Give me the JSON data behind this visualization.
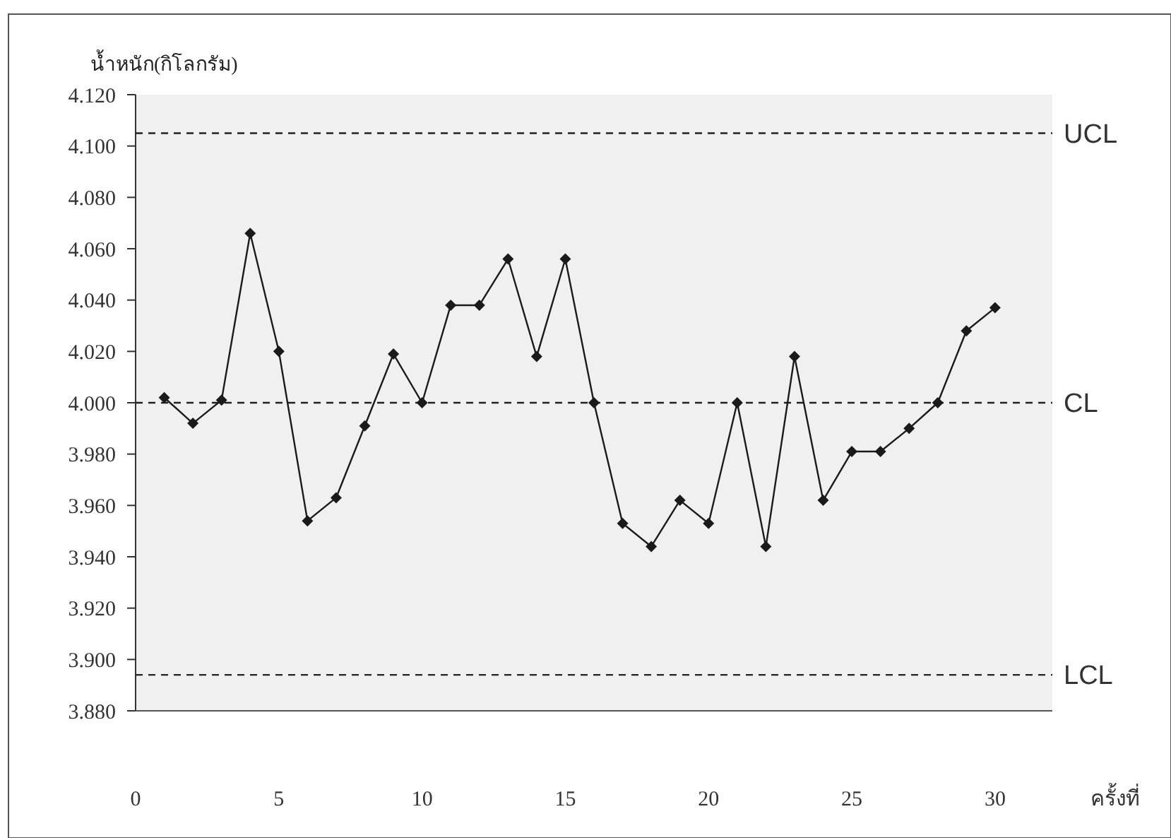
{
  "chart_data": {
    "type": "line",
    "ylabel": "น้ำหนัก(กิโลกรัม)",
    "xlabel": "ครั้งที่",
    "x": [
      1,
      2,
      3,
      4,
      5,
      6,
      7,
      8,
      9,
      10,
      11,
      12,
      13,
      14,
      15,
      16,
      17,
      18,
      19,
      20,
      21,
      22,
      23,
      24,
      25,
      26,
      27,
      28,
      29,
      30
    ],
    "series": [
      {
        "color": "#1a1a1a",
        "values": [
          4.002,
          3.992,
          4.001,
          4.066,
          4.02,
          3.954,
          3.963,
          3.991,
          4.019,
          4.0,
          4.038,
          4.038,
          4.056,
          4.018,
          4.056,
          4.0,
          3.953,
          3.944,
          3.962,
          3.953,
          4.0,
          3.944,
          4.018,
          3.962,
          3.981,
          3.981,
          3.99,
          4.0,
          4.028,
          4.037
        ]
      }
    ],
    "xlim": [
      0,
      32
    ],
    "xticks": [
      0,
      5,
      10,
      15,
      20,
      25,
      30
    ],
    "ylim": [
      3.88,
      4.12
    ],
    "yticks": [
      {
        "value": 3.88,
        "label": "3.880"
      },
      {
        "value": 3.9,
        "label": "3.900"
      },
      {
        "value": 3.92,
        "label": "3.920"
      },
      {
        "value": 3.94,
        "label": "3.940"
      },
      {
        "value": 3.96,
        "label": "3.960"
      },
      {
        "value": 3.98,
        "label": "3.980"
      },
      {
        "value": 4.0,
        "label": "4.000"
      },
      {
        "value": 4.02,
        "label": "4.020"
      },
      {
        "value": 4.04,
        "label": "4.040"
      },
      {
        "value": 4.06,
        "label": "4.060"
      },
      {
        "value": 4.08,
        "label": "4.080"
      },
      {
        "value": 4.1,
        "label": "4.100"
      },
      {
        "value": 4.12,
        "label": "4.120"
      }
    ],
    "ref_lines": [
      {
        "axis": "y",
        "value": 4.105,
        "label": "UCL",
        "line_style": "dashed"
      },
      {
        "axis": "y",
        "value": 4.0,
        "label": "CL",
        "line_style": "dashed"
      },
      {
        "axis": "y",
        "value": 3.894,
        "label": "LCL",
        "line_style": "dashed"
      }
    ],
    "grid": false,
    "marker": "diamond",
    "line_style": "solid"
  }
}
